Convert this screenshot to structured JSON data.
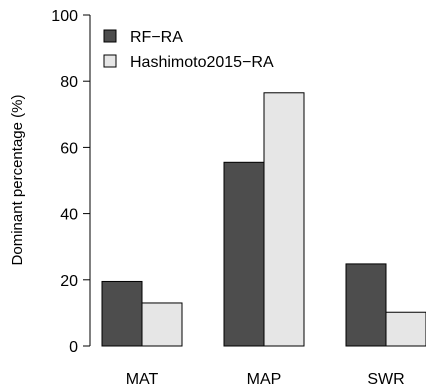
{
  "chart_data": {
    "type": "bar",
    "categories": [
      "MAT",
      "MAP",
      "SWR"
    ],
    "series": [
      {
        "name": "RF−RA",
        "values": [
          19.5,
          55.5,
          24.8
        ],
        "color": "#4d4d4d"
      },
      {
        "name": "Hashimoto2015−RA",
        "values": [
          13.0,
          76.5,
          10.2
        ],
        "color": "#e6e6e6"
      }
    ],
    "title": "",
    "xlabel": "",
    "ylabel": "Dominant percentage (%)",
    "ylim": [
      0,
      100
    ],
    "yticks": [
      "0",
      "20",
      "40",
      "60",
      "80",
      "100"
    ],
    "legend_position": "top-left",
    "grid": false
  }
}
